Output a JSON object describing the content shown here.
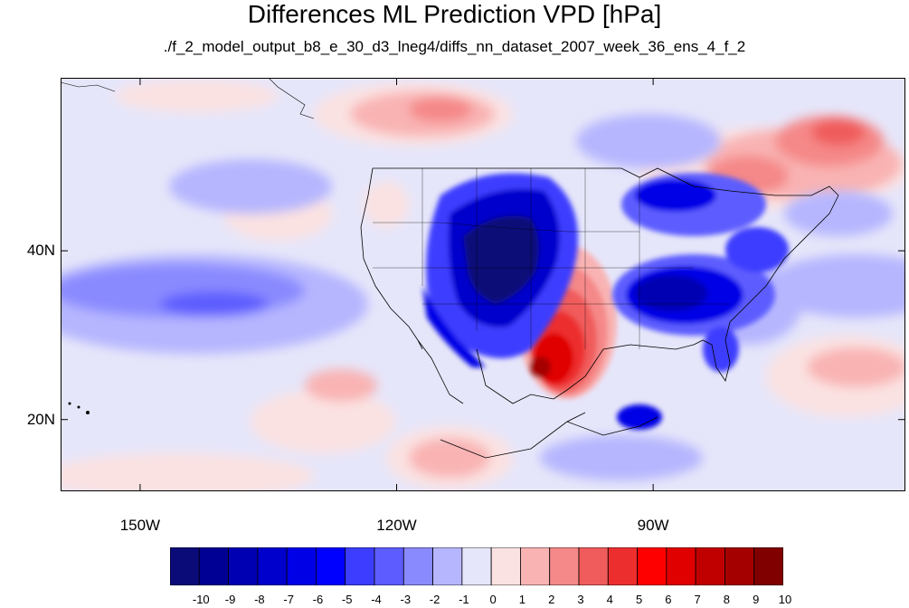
{
  "figure": {
    "title": "Differences ML Prediction VPD [hPa]",
    "subtitle": "./f_2_model_output_b8_e_30_d3_lneg4/diffs_nn_dataset_2007_week_36_ens_4_f_2"
  },
  "map": {
    "projection": "cylindrical equidistant",
    "lon_range": [
      -159.3,
      -60.5
    ],
    "lat_range": [
      11.5,
      60.5
    ],
    "lat_ticks": [
      {
        "value": 40,
        "label": "40N"
      },
      {
        "value": 20,
        "label": "20N"
      }
    ],
    "lon_ticks": [
      {
        "value": -150,
        "label": "150W"
      },
      {
        "value": -120,
        "label": "120W"
      },
      {
        "value": -90,
        "label": "90W"
      }
    ],
    "background_level": "-1..0 (pale blue)",
    "features": [
      {
        "region": "Great Basin / Four Corners",
        "lon": -110,
        "lat": 37,
        "value": -10,
        "sign": "negative"
      },
      {
        "region": "California coast / Baja",
        "lon": -116,
        "lat": 30,
        "value": -8,
        "sign": "negative"
      },
      {
        "region": "Southeast US",
        "lon": -86,
        "lat": 34,
        "value": -7,
        "sign": "negative"
      },
      {
        "region": "Great Lakes / Northeast",
        "lon": -84,
        "lat": 45,
        "value": -4,
        "sign": "negative"
      },
      {
        "region": "East Pacific band",
        "lon": -140,
        "lat": 34,
        "value": -4,
        "sign": "negative"
      },
      {
        "region": "Cuba / Hispaniola",
        "lon": -80,
        "lat": 21,
        "value": -6,
        "sign": "negative"
      },
      {
        "region": "Texas / Southern Plains",
        "lon": -99,
        "lat": 30,
        "value": 9,
        "sign": "positive"
      },
      {
        "region": "Northern Canada plume",
        "lon": -70,
        "lat": 52,
        "value": 4,
        "sign": "positive"
      },
      {
        "region": "North Pacific / BC",
        "lon": -130,
        "lat": 55,
        "value": 3,
        "sign": "positive"
      },
      {
        "region": "Western Atlantic",
        "lon": -68,
        "lat": 27,
        "value": 2,
        "sign": "positive"
      },
      {
        "region": "Tropical East Pacific",
        "lon": -125,
        "lat": 18,
        "value": 2,
        "sign": "positive"
      }
    ]
  },
  "colorbar": {
    "levels": [
      -10,
      -9,
      -8,
      -7,
      -6,
      -5,
      -4,
      -3,
      -2,
      -1,
      0,
      1,
      2,
      3,
      4,
      5,
      6,
      7,
      8,
      9,
      10
    ],
    "labels": [
      "-10",
      "-9",
      "-8",
      "-7",
      "-6",
      "-5",
      "-4",
      "-3",
      "-2",
      "-1",
      "0",
      "1",
      "2",
      "3",
      "4",
      "5",
      "6",
      "7",
      "8",
      "9",
      "10"
    ],
    "colors": [
      "#0a0a78",
      "#000094",
      "#0000b2",
      "#0000cc",
      "#0000e6",
      "#0000ff",
      "#3d3dff",
      "#5d5dff",
      "#8a8aff",
      "#b6b6ff",
      "#e6e6fa",
      "#fbe2e2",
      "#f9b3b3",
      "#f58888",
      "#f05b5b",
      "#ed2e2e",
      "#ff0000",
      "#e00000",
      "#c00000",
      "#a50000",
      "#800000"
    ]
  }
}
